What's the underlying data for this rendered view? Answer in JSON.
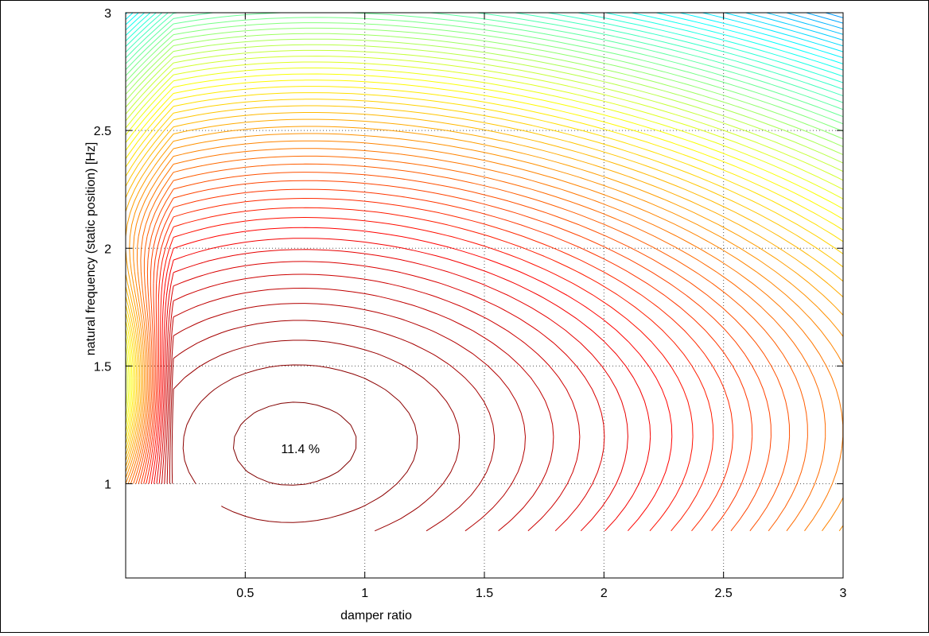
{
  "chart_data": {
    "type": "contour",
    "title": "",
    "xlabel": "damper ratio",
    "ylabel": "natural frequency (static position) [Hz]",
    "xlim": [
      0,
      3
    ],
    "ylim": [
      0.6,
      3
    ],
    "xticks": [
      0.5,
      1,
      1.5,
      2,
      2.5,
      3
    ],
    "xtick_labels": [
      "0.5",
      "1",
      "1.5",
      "2",
      "2.5",
      "3"
    ],
    "yticks": [
      1,
      1.5,
      2,
      2.5,
      3
    ],
    "ytick_labels": [
      "1",
      "1.5",
      "2",
      "2.5",
      "3"
    ],
    "grid": true,
    "colormap": "jet",
    "data_region": {
      "x": [
        0,
        3
      ],
      "y": [
        1,
        3
      ],
      "extra_block": {
        "x": [
          0.4,
          3
        ],
        "y": [
          0.8,
          1
        ]
      }
    },
    "peak": {
      "x": 0.7,
      "y": 1.17
    },
    "annotation": {
      "text": "11.4 %",
      "x": 0.65,
      "y": 1.15
    }
  }
}
